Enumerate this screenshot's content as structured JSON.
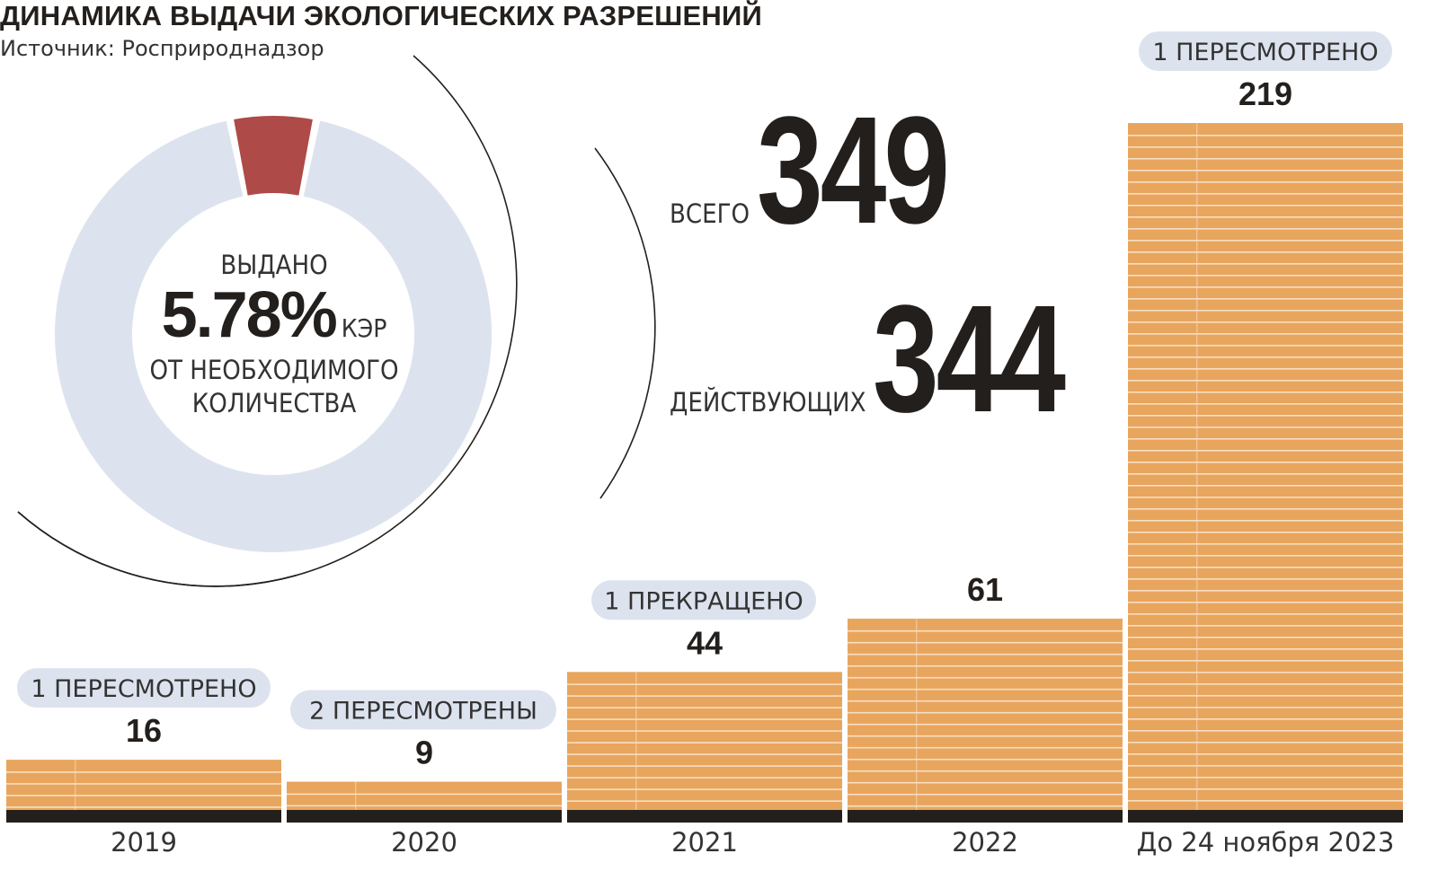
{
  "header": {
    "title": "ДИНАМИКА ВЫДАЧИ ЭКОЛОГИЧЕСКИХ РАЗРЕШЕНИЙ",
    "source": "Источник: Росприроднадзор"
  },
  "donut": {
    "line1": "ВЫДАНО",
    "percent": "5.78%",
    "unit": "КЭР",
    "line3": "ОТ НЕОБХОДИМОГО",
    "line4": "КОЛИЧЕСТВА",
    "share": 0.0578
  },
  "totals": {
    "total_label": "ВСЕГО",
    "total_value": "349",
    "active_label": "ДЕЙСТВУЮЩИХ",
    "active_value": "344"
  },
  "colors": {
    "bar": "#e8a55e",
    "bar_stripe": "#f7dfc0",
    "base": "#231f1c",
    "donut_bg": "#dde3ee",
    "donut_share": "#ae4a47",
    "pill": "#dde3ee",
    "text": "#231f1c"
  },
  "chart_data": {
    "type": "bar",
    "categories": [
      "2019",
      "2020",
      "2021",
      "2022",
      "До 24 ноября 2023"
    ],
    "values": [
      16,
      9,
      44,
      61,
      219
    ],
    "value_labels": [
      "16",
      "9",
      "44",
      "61",
      "219"
    ],
    "annotations": [
      "1 ПЕРЕСМОТРЕНО",
      "2 ПЕРЕСМОТРЕНЫ",
      "1 ПРЕКРАЩЕНО",
      "",
      "1 ПЕРЕСМОТРЕНО"
    ],
    "title": "ДИНАМИКА ВЫДАЧИ ЭКОЛОГИЧЕСКИХ РАЗРЕШЕНИЙ",
    "xlabel": "",
    "ylabel": "",
    "ylim": [
      0,
      219
    ],
    "grid": false
  }
}
